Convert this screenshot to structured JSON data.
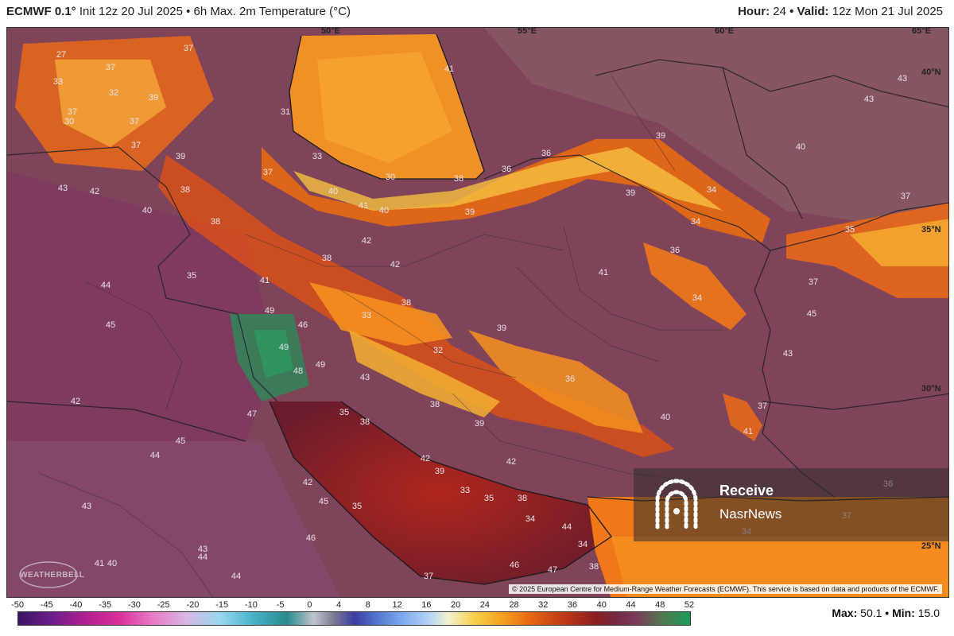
{
  "header": {
    "model": "ECMWF 0.1°",
    "init": "Init 12z 20 Jul 2025",
    "product": "• 6h Max. 2m Temperature (°C)",
    "hour_label": "Hour:",
    "hour_value": "24",
    "valid_label": "• Valid:",
    "valid_value": "12z Mon 21 Jul 2025"
  },
  "coords": {
    "lon50": "50°E",
    "lon55": "55°E",
    "lon60": "60°E",
    "lon65": "65°E",
    "lat40": "40°N",
    "lat35": "35°N",
    "lat30": "30°N",
    "lat25": "25°N"
  },
  "values": [
    "27",
    "37",
    "37",
    "33",
    "32",
    "39",
    "37",
    "31",
    "30",
    "37",
    "37",
    "39",
    "33",
    "43",
    "30",
    "36",
    "41",
    "37",
    "43",
    "42",
    "38",
    "40",
    "38",
    "36",
    "40",
    "41",
    "40",
    "42",
    "39",
    "43",
    "39",
    "40",
    "39",
    "38",
    "34",
    "34",
    "37",
    "36",
    "35",
    "38",
    "44",
    "45",
    "35",
    "41",
    "42",
    "38",
    "33",
    "41",
    "49",
    "46",
    "39",
    "49",
    "34",
    "48",
    "49",
    "43",
    "32",
    "45",
    "37",
    "43",
    "42",
    "45",
    "47",
    "35",
    "38",
    "36",
    "44",
    "38",
    "40",
    "39",
    "37",
    "42",
    "39",
    "42",
    "41",
    "33",
    "35",
    "45",
    "35",
    "46",
    "34",
    "38",
    "34",
    "44",
    "42",
    "46",
    "37",
    "47",
    "38",
    "41",
    "40",
    "44",
    "43",
    "43",
    "44",
    "36",
    "37",
    "34"
  ],
  "copyright": "© 2025 European Centre for Medium-Range Weather Forecasts (ECMWF). This service is based on data and products of the ECMWF.",
  "logo_text": "WEATHERBELL",
  "watermark": {
    "line1": "Receive",
    "line2": "NasrNews",
    "icon": "nasrnews-logo-icon"
  },
  "colorbar": {
    "ticks": [
      "-50",
      "-45",
      "-40",
      "-35",
      "-30",
      "-25",
      "-20",
      "-15",
      "-10",
      "-5",
      "0",
      "4",
      "8",
      "12",
      "16",
      "20",
      "24",
      "28",
      "32",
      "36",
      "40",
      "44",
      "48",
      "52"
    ],
    "units": "°C"
  },
  "stats": {
    "max_label": "Max:",
    "max_value": "50.1",
    "min_label": "• Min:",
    "min_value": "15.0"
  },
  "colors": {
    "hot_core": "#f5a020",
    "hot_edge": "#e86a12",
    "very_hot": "#8a1e20",
    "warm_land": "#7a3a5a",
    "extreme": "#1c9a5a",
    "gulf": "#8a1e20"
  }
}
